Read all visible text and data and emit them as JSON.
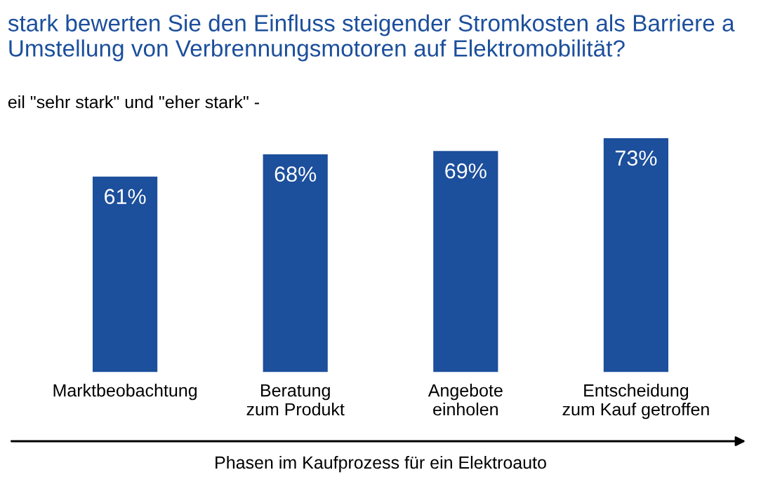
{
  "chart_data": {
    "type": "bar",
    "title": "stark bewerten Sie den Einfluss steigender Stromkosten als Barriere a\nUmstellung von Verbrennungsmotoren auf Elektromobilität?",
    "subtitle": "eil \"sehr stark\" und \"eher stark\" -",
    "xlabel": "Phasen im Kaufprozess für ein Elektroauto",
    "categories": [
      "Marktbeobachtung",
      "Beratung\nzum Produkt",
      "Angebote\neinholen",
      "Entscheidung\nzum Kauf getroffen"
    ],
    "values": [
      61,
      68,
      69,
      73
    ],
    "color": "#1c4f9c",
    "value_labels": [
      "61%",
      "68%",
      "69%",
      "73%"
    ],
    "grid": false,
    "legend": false
  }
}
